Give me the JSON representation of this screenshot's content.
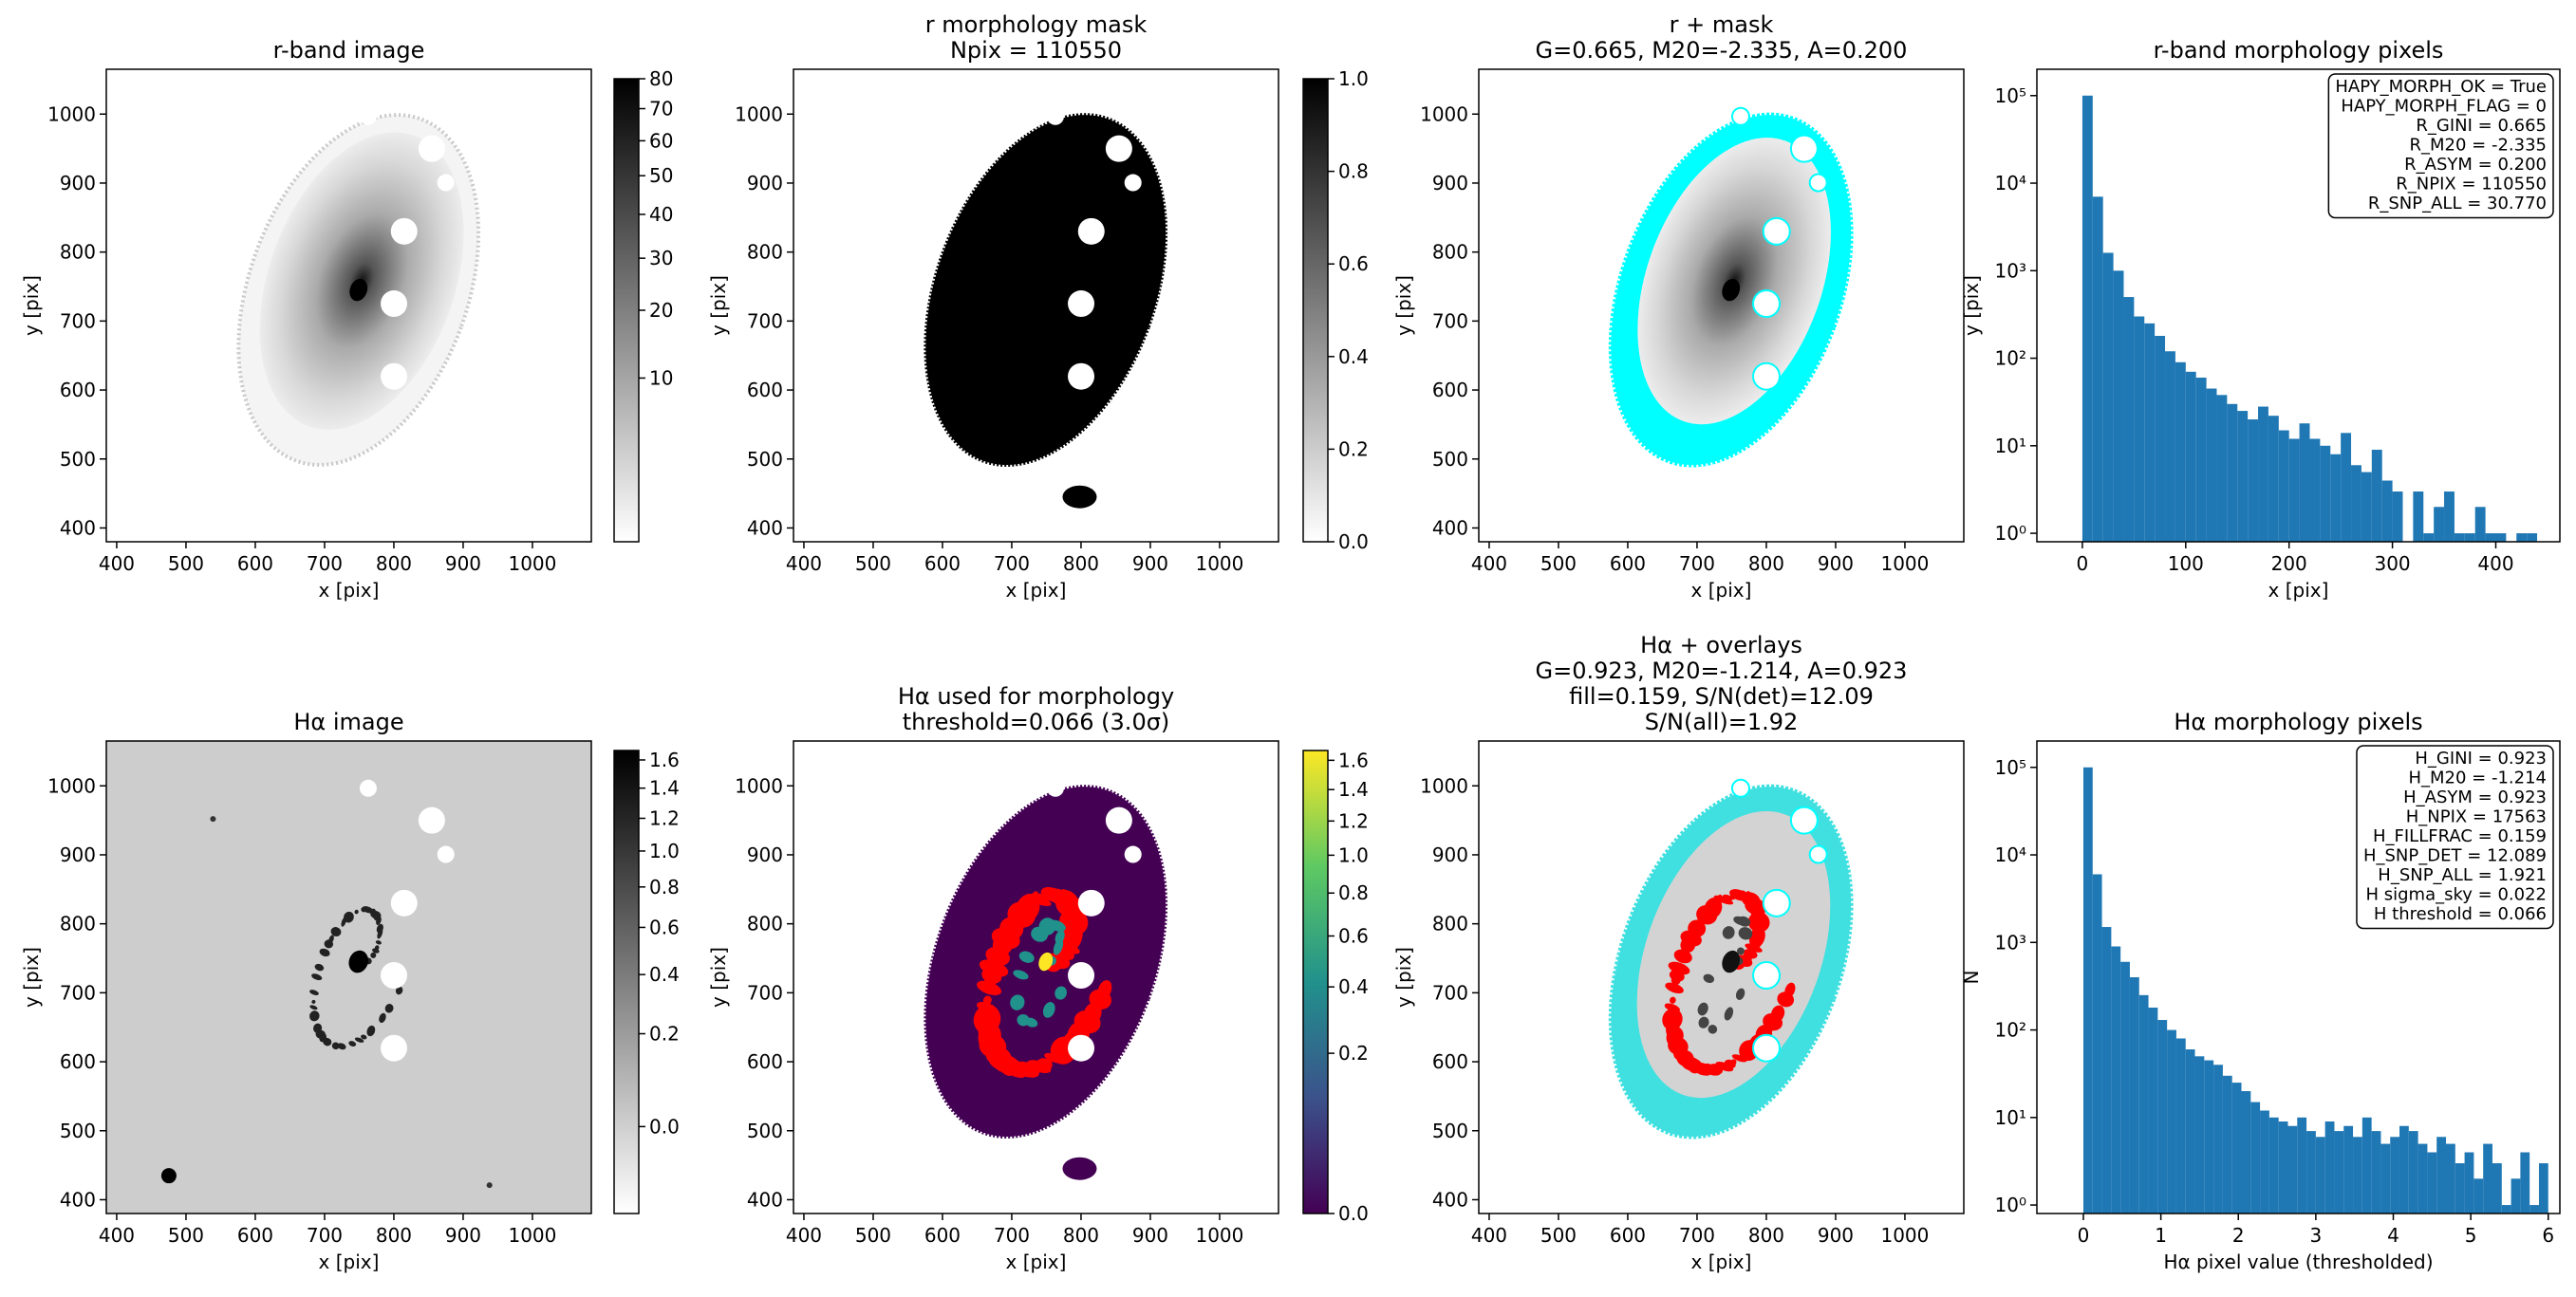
{
  "chart_data": [
    {
      "type": "image",
      "title": [
        "r-band image"
      ],
      "xlabel": "x [pix]",
      "ylabel": "y [pix]",
      "xlim": [
        385,
        1085
      ],
      "ylim": [
        380,
        1065
      ],
      "xticks": [
        400,
        500,
        600,
        700,
        800,
        900,
        1000
      ],
      "yticks": [
        400,
        500,
        600,
        700,
        800,
        900,
        1000
      ],
      "colorbar": {
        "colormap": "gray_r",
        "scale": "sqrt",
        "lim": [
          0,
          80
        ],
        "ticks": [
          10,
          20,
          30,
          40,
          50,
          60,
          70,
          80
        ]
      }
    },
    {
      "type": "image",
      "title": [
        "r morphology mask",
        "Npix = 110550"
      ],
      "xlabel": "x [pix]",
      "ylabel": "y [pix]",
      "xlim": [
        385,
        1085
      ],
      "ylim": [
        380,
        1065
      ],
      "xticks": [
        400,
        500,
        600,
        700,
        800,
        900,
        1000
      ],
      "yticks": [
        400,
        500,
        600,
        700,
        800,
        900,
        1000
      ],
      "colorbar": {
        "colormap": "gray_r",
        "scale": "linear",
        "lim": [
          0,
          1
        ],
        "ticks": [
          {
            "value": 0,
            "label": "0.0"
          },
          {
            "value": 0.2,
            "label": "0.2"
          },
          {
            "value": 0.4,
            "label": "0.4"
          },
          {
            "value": 0.6,
            "label": "0.6"
          },
          {
            "value": 0.8,
            "label": "0.8"
          },
          {
            "value": 1,
            "label": "1.0"
          }
        ]
      }
    },
    {
      "type": "image",
      "title": [
        "r + mask",
        "G=0.665, M20=-2.335, A=0.200"
      ],
      "xlabel": "x [pix]",
      "ylabel": "y [pix]",
      "xlim": [
        385,
        1085
      ],
      "ylim": [
        380,
        1065
      ],
      "xticks": [
        400,
        500,
        600,
        700,
        800,
        900,
        1000
      ],
      "yticks": [
        400,
        500,
        600,
        700,
        800,
        900,
        1000
      ]
    },
    {
      "type": "histogram",
      "title": [
        "r-band morphology pixels"
      ],
      "xlabel": "x [pix]",
      "ylabel": "y [pix]",
      "color": "#1f77b4",
      "log_y": true,
      "xlim": [
        -44,
        462
      ],
      "ylim": [
        0.8,
        200000
      ],
      "xticks": [
        0,
        100,
        200,
        300,
        400
      ],
      "yticks": [
        {
          "value": 1,
          "label": "10⁰"
        },
        {
          "value": 10,
          "label": "10¹"
        },
        {
          "value": 100,
          "label": "10²"
        },
        {
          "value": 1000,
          "label": "10³"
        },
        {
          "value": 10000,
          "label": "10⁴"
        },
        {
          "value": 100000,
          "label": "10⁵"
        }
      ],
      "bins": [
        0,
        10,
        20,
        30,
        40,
        50,
        60,
        70,
        80,
        90,
        100,
        110,
        120,
        130,
        140,
        150,
        160,
        170,
        180,
        190,
        200,
        210,
        220,
        230,
        240,
        250,
        260,
        270,
        280,
        290,
        300,
        310,
        320,
        330,
        340,
        350,
        360,
        370,
        380,
        390,
        400,
        410,
        420,
        430,
        440
      ],
      "counts": [
        100000,
        7000,
        1600,
        1000,
        500,
        300,
        250,
        180,
        120,
        90,
        70,
        60,
        45,
        38,
        30,
        25,
        20,
        28,
        22,
        15,
        12,
        18,
        12,
        10,
        8,
        14,
        6,
        5,
        9,
        4,
        3,
        0,
        3,
        1,
        2,
        3,
        1,
        1,
        2,
        1,
        1,
        0,
        1,
        1
      ],
      "annotation": [
        "HAPY_MORPH_OK = True",
        "HAPY_MORPH_FLAG = 0",
        "R_GINI = 0.665",
        "R_M20 = -2.335",
        "R_ASYM = 0.200",
        "R_NPIX = 110550",
        "R_SNP_ALL = 30.770"
      ]
    },
    {
      "type": "image",
      "title": [
        "Hα image"
      ],
      "xlabel": "x [pix]",
      "ylabel": "y [pix]",
      "xlim": [
        385,
        1085
      ],
      "ylim": [
        380,
        1065
      ],
      "xticks": [
        400,
        500,
        600,
        700,
        800,
        900,
        1000
      ],
      "yticks": [
        400,
        500,
        600,
        700,
        800,
        900,
        1000
      ],
      "colorbar": {
        "colormap": "gray_r",
        "scale": "sqrt",
        "lim": [
          -0.061,
          1.67
        ],
        "ticks": [
          {
            "value": 0,
            "label": "0.0"
          },
          {
            "value": 0.2,
            "label": "0.2"
          },
          {
            "value": 0.4,
            "label": "0.4"
          },
          {
            "value": 0.6,
            "label": "0.6"
          },
          {
            "value": 0.8,
            "label": "0.8"
          },
          {
            "value": 1,
            "label": "1.0"
          },
          {
            "value": 1.2,
            "label": "1.2"
          },
          {
            "value": 1.4,
            "label": "1.4"
          },
          {
            "value": 1.6,
            "label": "1.6"
          }
        ]
      }
    },
    {
      "type": "image",
      "title": [
        "Hα used for morphology",
        "threshold=0.066 (3.0σ)"
      ],
      "xlabel": "x [pix]",
      "ylabel": "y [pix]",
      "xlim": [
        385,
        1085
      ],
      "ylim": [
        380,
        1065
      ],
      "xticks": [
        400,
        500,
        600,
        700,
        800,
        900,
        1000
      ],
      "yticks": [
        400,
        500,
        600,
        700,
        800,
        900,
        1000
      ],
      "colorbar": {
        "colormap": "viridis",
        "scale": "sqrt",
        "lim": [
          0,
          1.67
        ],
        "ticks": [
          {
            "value": 0,
            "label": "0.0"
          },
          {
            "value": 0.2,
            "label": "0.2"
          },
          {
            "value": 0.4,
            "label": "0.4"
          },
          {
            "value": 0.6,
            "label": "0.6"
          },
          {
            "value": 0.8,
            "label": "0.8"
          },
          {
            "value": 1,
            "label": "1.0"
          },
          {
            "value": 1.2,
            "label": "1.2"
          },
          {
            "value": 1.4,
            "label": "1.4"
          },
          {
            "value": 1.6,
            "label": "1.6"
          }
        ]
      }
    },
    {
      "type": "image",
      "title": [
        "Hα + overlays",
        "G=0.923, M20=-1.214, A=0.923",
        "fill=0.159, S/N(det)=12.09",
        "S/N(all)=1.92"
      ],
      "xlabel": "x [pix]",
      "ylabel": "y [pix]",
      "xlim": [
        385,
        1085
      ],
      "ylim": [
        380,
        1065
      ],
      "xticks": [
        400,
        500,
        600,
        700,
        800,
        900,
        1000
      ],
      "yticks": [
        400,
        500,
        600,
        700,
        800,
        900,
        1000
      ]
    },
    {
      "type": "histogram",
      "title": [
        "Hα morphology pixels"
      ],
      "xlabel": "Hα pixel value (thresholded)",
      "ylabel": "N",
      "color": "#1f77b4",
      "log_y": true,
      "xlim": [
        -0.6,
        6.15
      ],
      "ylim": [
        0.8,
        200000
      ],
      "xticks": [
        0,
        1,
        2,
        3,
        4,
        5,
        6
      ],
      "yticks": [
        {
          "value": 1,
          "label": "10⁰"
        },
        {
          "value": 10,
          "label": "10¹"
        },
        {
          "value": 100,
          "label": "10²"
        },
        {
          "value": 1000,
          "label": "10³"
        },
        {
          "value": 10000,
          "label": "10⁴"
        },
        {
          "value": 100000,
          "label": "10⁵"
        }
      ],
      "bins": [
        0,
        0.12,
        0.24,
        0.36,
        0.48,
        0.6,
        0.72,
        0.84,
        0.96,
        1.08,
        1.2,
        1.32,
        1.44,
        1.56,
        1.68,
        1.8,
        1.92,
        2.04,
        2.16,
        2.28,
        2.4,
        2.52,
        2.64,
        2.76,
        2.88,
        3,
        3.12,
        3.24,
        3.36,
        3.48,
        3.6,
        3.72,
        3.84,
        3.96,
        4.08,
        4.2,
        4.32,
        4.44,
        4.56,
        4.68,
        4.8,
        4.92,
        5.04,
        5.16,
        5.28,
        5.4,
        5.52,
        5.64,
        5.76,
        5.88,
        6
      ],
      "counts": [
        100000,
        6000,
        1500,
        900,
        600,
        400,
        250,
        180,
        130,
        100,
        80,
        60,
        50,
        45,
        40,
        30,
        25,
        20,
        15,
        12,
        10,
        9,
        8,
        10,
        7,
        6,
        9,
        7,
        8,
        6,
        10,
        7,
        5,
        6,
        8,
        7,
        5,
        4,
        6,
        5,
        3,
        4,
        2,
        5,
        3,
        1,
        2,
        4,
        1,
        3
      ],
      "annotation": [
        "H_GINI = 0.923",
        "H_M20 = -1.214",
        "H_ASYM = 0.923",
        "H_NPIX = 17563",
        "H_FILLFRAC = 0.159",
        "H_SNP_DET = 12.089",
        "H_SNP_ALL = 1.921",
        "H sigma_sky = 0.022",
        "H threshold = 0.066"
      ]
    }
  ]
}
